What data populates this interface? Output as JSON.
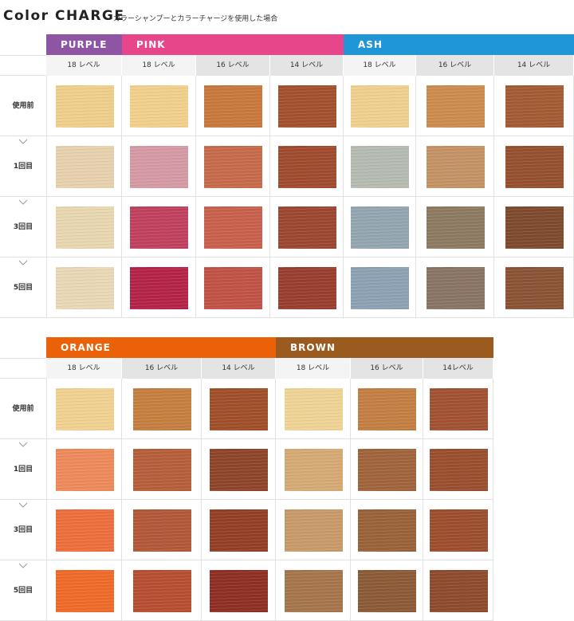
{
  "header": {
    "title": "Color CHARGE",
    "subtitle": "カラーシャンプーとカラーチャージを使用した場合"
  },
  "tables": [
    {
      "row_labels": [
        "使用前",
        "1回目",
        "3回目",
        "5回目"
      ],
      "groups": [
        {
          "name": "PURPLE",
          "color": "#8e55a5",
          "columns": [
            {
              "level": "18 レベル",
              "swatches": [
                "#f0cf8a",
                "#e8d2ae",
                "#e9d7b0",
                "#ead8b6"
              ]
            }
          ]
        },
        {
          "name": "PINK",
          "color": "#e8468a",
          "columns": [
            {
              "level": "18 レベル",
              "swatches": [
                "#f2d08c",
                "#d69aa4",
                "#c0405e",
                "#b52248"
              ]
            },
            {
              "level": "16 レベル",
              "swatches": [
                "#c9783c",
                "#c76a4a",
                "#c9604c",
                "#c25246"
              ]
            },
            {
              "level": "14 レベル",
              "swatches": [
                "#a4502c",
                "#a04a2e",
                "#9c4630",
                "#9a3e2e"
              ]
            }
          ]
        },
        {
          "name": "ASH",
          "color": "#1e96d8",
          "columns": [
            {
              "level": "18 レベル",
              "swatches": [
                "#f0d08e",
                "#b6bcb2",
                "#93a6b0",
                "#8ca2b4"
              ]
            },
            {
              "level": "16 レベル",
              "swatches": [
                "#cc8c4c",
                "#c49264",
                "#8e7a62",
                "#8a7464"
              ]
            },
            {
              "level": "14 レベル",
              "swatches": [
                "#a45a32",
                "#96502e",
                "#7e4a2c",
                "#8a5234"
              ]
            }
          ]
        }
      ]
    },
    {
      "row_labels": [
        "使用前",
        "1回目",
        "3回目",
        "5回目"
      ],
      "groups": [
        {
          "name": "ORANGE",
          "color": "#eb6108",
          "columns": [
            {
              "level": "18 レベル",
              "swatches": [
                "#f2d290",
                "#ee8a5a",
                "#ee6e3c",
                "#ef6a28"
              ]
            },
            {
              "level": "16 レベル",
              "swatches": [
                "#c67e40",
                "#b65e3a",
                "#b35838",
                "#b84e30"
              ]
            },
            {
              "level": "14 レベル",
              "swatches": [
                "#a04e28",
                "#8e4428",
                "#943e26",
                "#902e22"
              ]
            }
          ]
        },
        {
          "name": "BROWN",
          "color": "#9b5a1e",
          "columns": [
            {
              "level": "18 レベル",
              "swatches": [
                "#f0d496",
                "#d6aa74",
                "#c89a6a",
                "#a6764a"
              ]
            },
            {
              "level": "16 レベル",
              "swatches": [
                "#c47e42",
                "#a0643a",
                "#9a6238",
                "#8c5a36"
              ]
            },
            {
              "level": "14レベル",
              "swatches": [
                "#a25232",
                "#9a4e2e",
                "#9c4e2c",
                "#8e4a2c"
              ]
            }
          ]
        }
      ]
    }
  ]
}
